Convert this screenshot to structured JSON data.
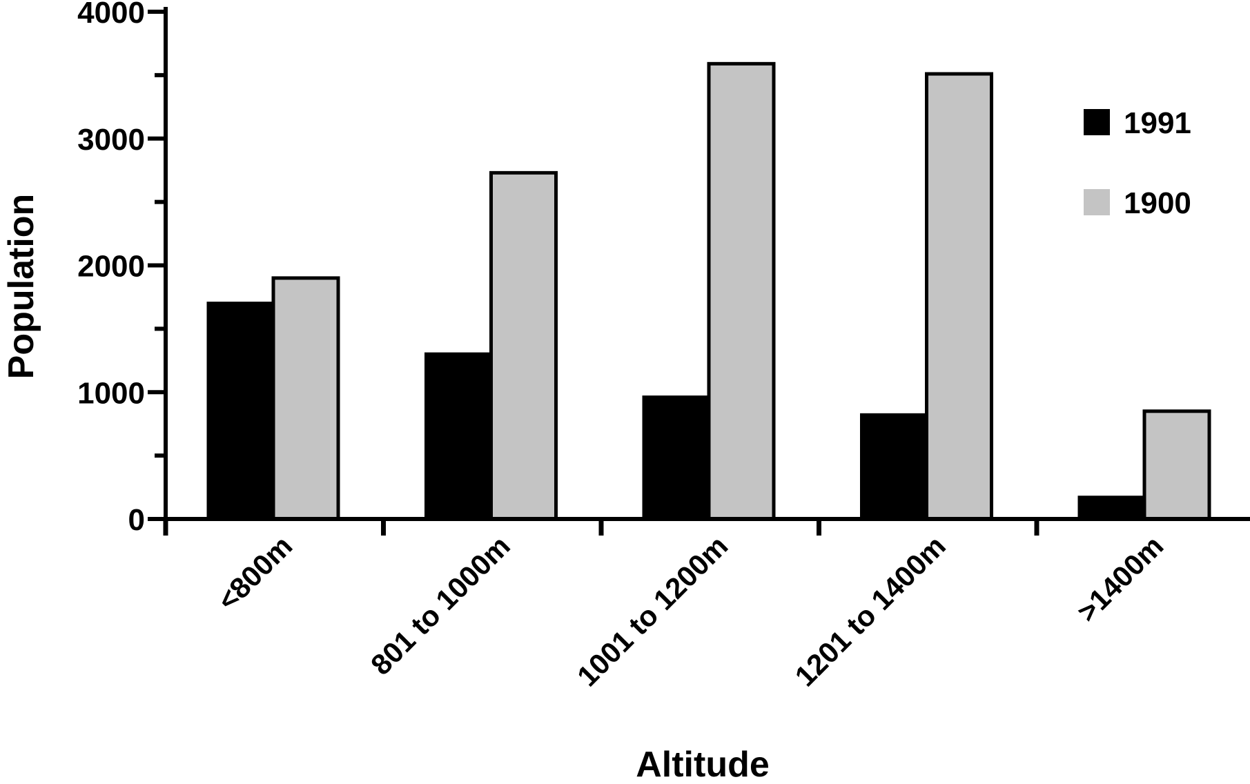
{
  "chart_data": {
    "type": "bar",
    "title": "",
    "xlabel": "Altitude",
    "ylabel": "Population",
    "categories": [
      "<800m",
      "801 to 1000m",
      "1001 to 1200m",
      "1201 to 1400m",
      ">1400m"
    ],
    "series": [
      {
        "name": "1991",
        "color": "#000000",
        "values": [
          1700,
          1300,
          960,
          820,
          170
        ]
      },
      {
        "name": "1900",
        "color": "#c4c4c4",
        "values": [
          1900,
          2730,
          3590,
          3510,
          850
        ]
      }
    ],
    "ylim": [
      0,
      4000
    ],
    "yticks": [
      0,
      1000,
      2000,
      3000,
      4000
    ],
    "ytick_labels": [
      "0",
      "1000",
      "2000",
      "3000",
      "4000"
    ],
    "grid": false,
    "legend_position": "top-right",
    "bar_outline_color": "#000000"
  }
}
